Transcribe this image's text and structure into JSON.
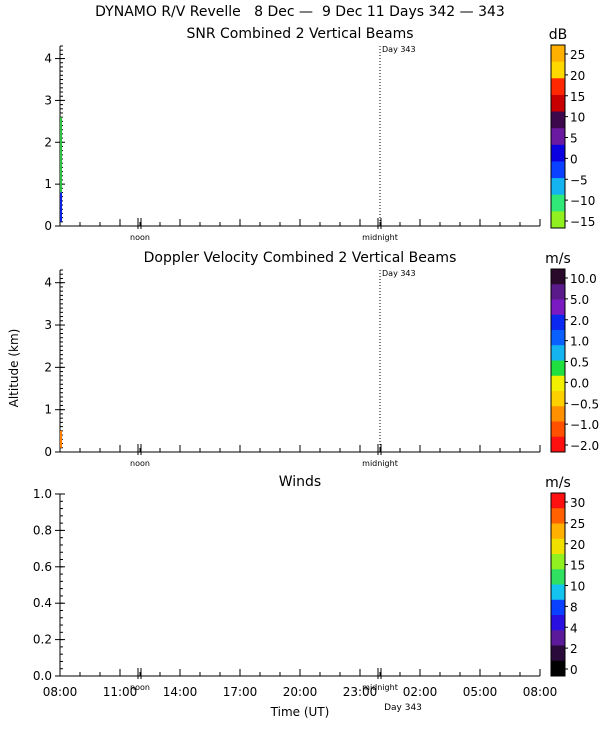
{
  "title": "DYNAMO R/V Revelle   8 Dec —  9 Dec 11 Days 342 — 343",
  "y_axis_label": "Altitude (km)",
  "x_axis_label": "Time (UT)",
  "x_ticks": [
    "08:00",
    "11:00",
    "14:00",
    "17:00",
    "20:00",
    "23:00",
    "02:00",
    "05:00",
    "08:00"
  ],
  "midnight_label": "midnight",
  "noon_label": "noon",
  "day_label": "Day 343",
  "chart_data": [
    {
      "type": "heatmap",
      "title": "SNR Combined 2 Vertical Beams",
      "ylabel": "Altitude (km)",
      "ylim": [
        0,
        4.3
      ],
      "y_ticks": [
        "0",
        "1",
        "2",
        "3",
        "4"
      ],
      "colorbar": {
        "unit": "dB",
        "labels": [
          "25",
          "20",
          "15",
          "10",
          "5",
          "0",
          "−5",
          "−10",
          "−15"
        ],
        "colors": [
          "#ffb000",
          "#ffd800",
          "#ff2800",
          "#c80000",
          "#3c0a4c",
          "#6a1aa0",
          "#0a00e0",
          "#0a40ff",
          "#14b4f0",
          "#30e878",
          "#90f020"
        ]
      },
      "data": [
        {
          "start": "08:00",
          "ymin": 0.1,
          "ymax": 0.8,
          "color": "#0a20e0"
        },
        {
          "start": "08:00",
          "ymin": 0.8,
          "ymax": 2.6,
          "color": "#30c040"
        }
      ]
    },
    {
      "type": "heatmap",
      "title": "Doppler Velocity Combined 2 Vertical Beams",
      "ylabel": "Altitude (km)",
      "ylim": [
        0,
        4.3
      ],
      "y_ticks": [
        "0",
        "1",
        "2",
        "3",
        "4"
      ],
      "colorbar": {
        "unit": "m/s",
        "labels": [
          "10.0",
          "5.0",
          "2.0",
          "1.0",
          "0.5",
          "0.0",
          "−0.5",
          "−1.0",
          "−2.0"
        ],
        "colors": [
          "#2a0a2a",
          "#5a1a8a",
          "#7a1ac0",
          "#0a28f0",
          "#0a60ff",
          "#14b4f0",
          "#20e040",
          "#f0f000",
          "#ffd000",
          "#ff9000",
          "#ff5000",
          "#ff1010"
        ]
      },
      "data": [
        {
          "start": "08:00",
          "ymin": 0.1,
          "ymax": 0.5,
          "color": "#ff8000"
        }
      ]
    },
    {
      "type": "heatmap",
      "title": "Winds",
      "ylim": [
        0,
        1.0
      ],
      "y_ticks": [
        "0.0",
        "0.2",
        "0.4",
        "0.6",
        "0.8",
        "1.0"
      ],
      "colorbar": {
        "unit": "m/s",
        "labels": [
          "30",
          "25",
          "20",
          "15",
          "10",
          "8",
          "4",
          "2",
          "0"
        ],
        "colors": [
          "#ff1010",
          "#ff6000",
          "#ffb000",
          "#f0e000",
          "#90f020",
          "#30e060",
          "#14c4f0",
          "#0a40ff",
          "#2a10e0",
          "#5a1a9a",
          "#2a0a3a",
          "#000000"
        ]
      },
      "data": []
    }
  ]
}
